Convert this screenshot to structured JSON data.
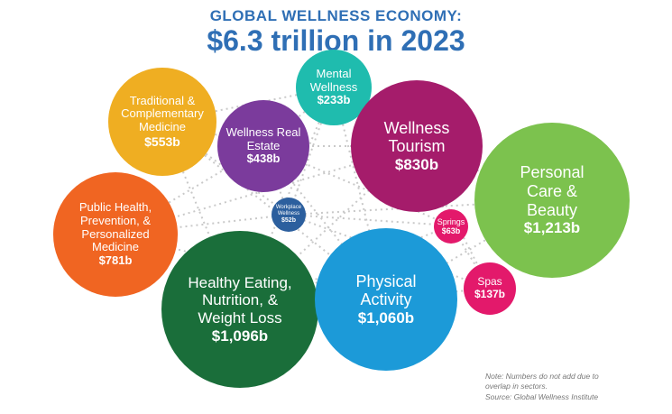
{
  "header": {
    "title_top": "GLOBAL WELLNESS ECONOMY:",
    "title_main": "$6.3 trillion in 2023"
  },
  "bubbles": [
    {
      "name": "Traditional & Complementary Medicine",
      "value": "$553b",
      "color": "#efae22"
    },
    {
      "name": "Mental Wellness",
      "value": "$233b",
      "color": "#1fbcae"
    },
    {
      "name": "Wellness Real Estate",
      "value": "$438b",
      "color": "#7b3b9c"
    },
    {
      "name": "Wellness Tourism",
      "value": "$830b",
      "color": "#a51c6b"
    },
    {
      "name": "Personal Care & Beauty",
      "value": "$1,213b",
      "color": "#7cc24e"
    },
    {
      "name": "Public Health, Prevention, & Personalized Medicine",
      "value": "$781b",
      "color": "#f06522"
    },
    {
      "name": "Workplace Wellness",
      "value": "$52b",
      "color": "#2c5f9e"
    },
    {
      "name": "Springs",
      "value": "$63b",
      "color": "#e3196b"
    },
    {
      "name": "Healthy Eating, Nutrition, & Weight Loss",
      "value": "$1,096b",
      "color": "#1a6e3a"
    },
    {
      "name": "Physical Activity",
      "value": "$1,060b",
      "color": "#1c9ad8"
    },
    {
      "name": "Spas",
      "value": "$137b",
      "color": "#e3196b"
    }
  ],
  "note": {
    "line1": "Note: Numbers do not add due to",
    "line2": "overlap in sectors.",
    "line3": "Source: Global Wellness Institute"
  }
}
